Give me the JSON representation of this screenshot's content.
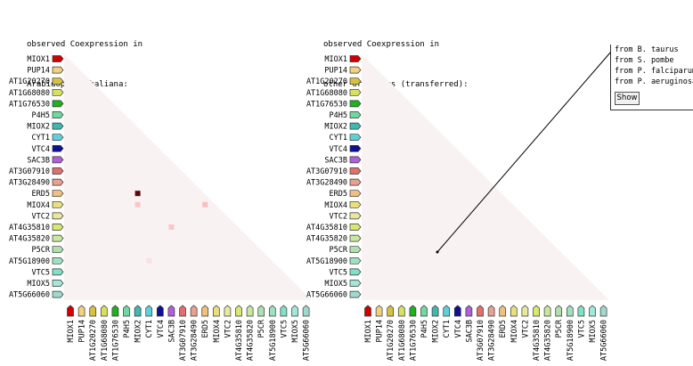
{
  "panels": [
    {
      "title_line1": "observed Coexpression in",
      "title_line2": "Arabidopsis thaliana:"
    },
    {
      "title_line1": "observed Coexpression in",
      "title_line2": "other organisms (transferred):"
    }
  ],
  "genes": [
    {
      "name": "MIOX1",
      "color": "#d00000"
    },
    {
      "name": "PUP14",
      "color": "#f2d080"
    },
    {
      "name": "AT1G20270",
      "color": "#d8c040"
    },
    {
      "name": "AT1G68080",
      "color": "#d8e060"
    },
    {
      "name": "AT1G76530",
      "color": "#20b020"
    },
    {
      "name": "P4H5",
      "color": "#70d8a0"
    },
    {
      "name": "MIOX2",
      "color": "#40b8b0"
    },
    {
      "name": "CYT1",
      "color": "#60d0d8"
    },
    {
      "name": "VTC4",
      "color": "#101090"
    },
    {
      "name": "SAC3B",
      "color": "#b060d8"
    },
    {
      "name": "AT3G07910",
      "color": "#e07070"
    },
    {
      "name": "AT3G28490",
      "color": "#e8a090"
    },
    {
      "name": "ERD5",
      "color": "#f0c080"
    },
    {
      "name": "MIOX4",
      "color": "#e8e080"
    },
    {
      "name": "VTC2",
      "color": "#e8e8a0"
    },
    {
      "name": "AT4G35810",
      "color": "#d8e870"
    },
    {
      "name": "AT4G35820",
      "color": "#c8e8a0"
    },
    {
      "name": "P5CR",
      "color": "#b0e0b0"
    },
    {
      "name": "AT5G18900",
      "color": "#a0e0c0"
    },
    {
      "name": "VTC5",
      "color": "#80e0c8"
    },
    {
      "name": "MIOX5",
      "color": "#a0e8d8"
    },
    {
      "name": "AT5G66060",
      "color": "#a0d8d0"
    }
  ],
  "matrix_background": "#f8f2f2",
  "coexpression_cells": [
    {
      "row": "ERD5",
      "col": "MIOX2",
      "color": "#5a0a0a"
    },
    {
      "row": "MIOX4",
      "col": "MIOX2",
      "color": "#f8c8c8"
    },
    {
      "row": "MIOX4",
      "col": "ERD5",
      "color": "#f8c0c0"
    },
    {
      "row": "AT4G35810",
      "col": "SAC3B",
      "color": "#f8c8c8"
    },
    {
      "row": "AT5G18900",
      "col": "CYT1",
      "color": "#fbe0e0"
    }
  ],
  "legend": {
    "items": [
      "from B. taurus",
      "from S. pombe",
      "from P. falciparum",
      "from P. aeruginosa"
    ],
    "show_label": "Show"
  }
}
